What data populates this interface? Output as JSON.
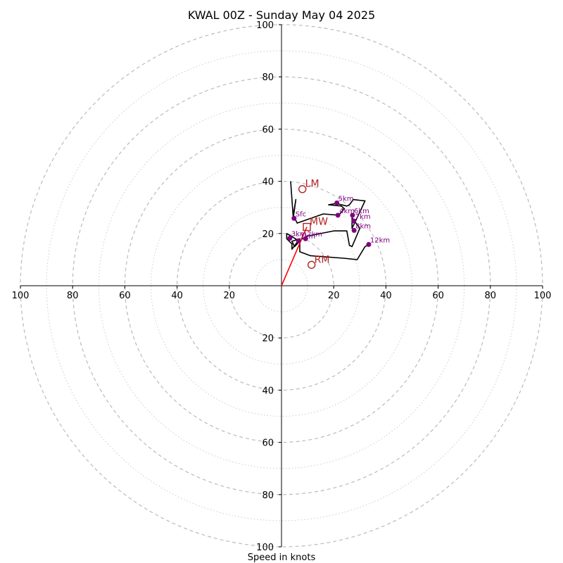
{
  "chart_data": {
    "type": "line",
    "title": "KWAL 00Z - Sunday May 04 2025",
    "xlabel": "Speed in knots",
    "ylabel": "",
    "units": "knots",
    "xlim": [
      -100,
      100
    ],
    "ylim": [
      -100,
      100
    ],
    "tick_labels": [
      "100",
      "80",
      "60",
      "40",
      "20",
      "20",
      "40",
      "60",
      "80",
      "100"
    ],
    "tick_values": [
      -100,
      -80,
      -60,
      -40,
      -20,
      20,
      40,
      60,
      80,
      100
    ],
    "rings": {
      "dashed": [
        20,
        40,
        60,
        80,
        100
      ],
      "dotted": [
        10,
        30,
        50,
        70,
        90
      ]
    },
    "hodograph": [
      [
        3.5,
        40
      ],
      [
        4.5,
        26
      ],
      [
        5.5,
        33
      ],
      [
        4.5,
        27
      ],
      [
        6,
        24
      ],
      [
        16,
        27.5
      ],
      [
        22,
        27
      ],
      [
        24,
        29.5
      ],
      [
        23,
        30.5
      ],
      [
        18,
        31
      ],
      [
        21,
        31.5
      ],
      [
        25,
        30.5
      ],
      [
        26,
        31
      ],
      [
        27.5,
        33
      ],
      [
        32,
        32.5
      ],
      [
        28,
        24
      ],
      [
        27,
        22
      ],
      [
        27,
        26
      ],
      [
        30,
        22
      ],
      [
        27,
        15
      ],
      [
        26,
        15.5
      ],
      [
        25,
        21
      ],
      [
        20,
        21
      ],
      [
        10,
        19
      ],
      [
        8,
        18
      ],
      [
        6,
        16
      ],
      [
        5,
        15
      ],
      [
        4,
        17
      ],
      [
        7,
        18
      ],
      [
        4,
        14
      ],
      [
        4,
        16
      ],
      [
        2,
        18
      ],
      [
        2,
        20
      ],
      [
        7,
        17
      ],
      [
        7,
        13
      ],
      [
        11,
        11.5
      ],
      [
        24,
        10.5
      ],
      [
        29,
        10
      ],
      [
        32,
        15
      ],
      [
        33.5,
        15.8
      ]
    ],
    "height_markers": [
      {
        "label": "Sfc",
        "u": 4.8,
        "v": 25.8
      },
      {
        "label": "3km",
        "u": 3.2,
        "v": 18.2
      },
      {
        "label": "1km",
        "u": 6.5,
        "v": 17.2
      },
      {
        "label": "2km",
        "u": 9.2,
        "v": 18.0
      },
      {
        "label": "4km",
        "u": 21.6,
        "v": 27.0
      },
      {
        "label": "5km",
        "u": 21.2,
        "v": 31.7
      },
      {
        "label": "6km",
        "u": 27.2,
        "v": 27.0
      },
      {
        "label": "7km",
        "u": 27.7,
        "v": 24.8
      },
      {
        "label": "8km",
        "u": 27.8,
        "v": 21.2
      },
      {
        "label": "12km",
        "u": 33.4,
        "v": 15.8
      }
    ],
    "storm_motion": {
      "bunkers_right": {
        "label": "RM",
        "u": 11.5,
        "v": 8
      },
      "bunkers_left": {
        "label": "LM",
        "u": 8,
        "v": 37
      },
      "mean_wind": {
        "label": "MW",
        "u": 9.7,
        "v": 22.5
      }
    },
    "colors": {
      "hodograph": "#000000",
      "height_marker": "#800080",
      "storm_motion": "#b22222",
      "motion_vector": "#ff0000",
      "dashed_ring": "#bbbbbb",
      "dotted_ring": "#cccccc"
    }
  }
}
